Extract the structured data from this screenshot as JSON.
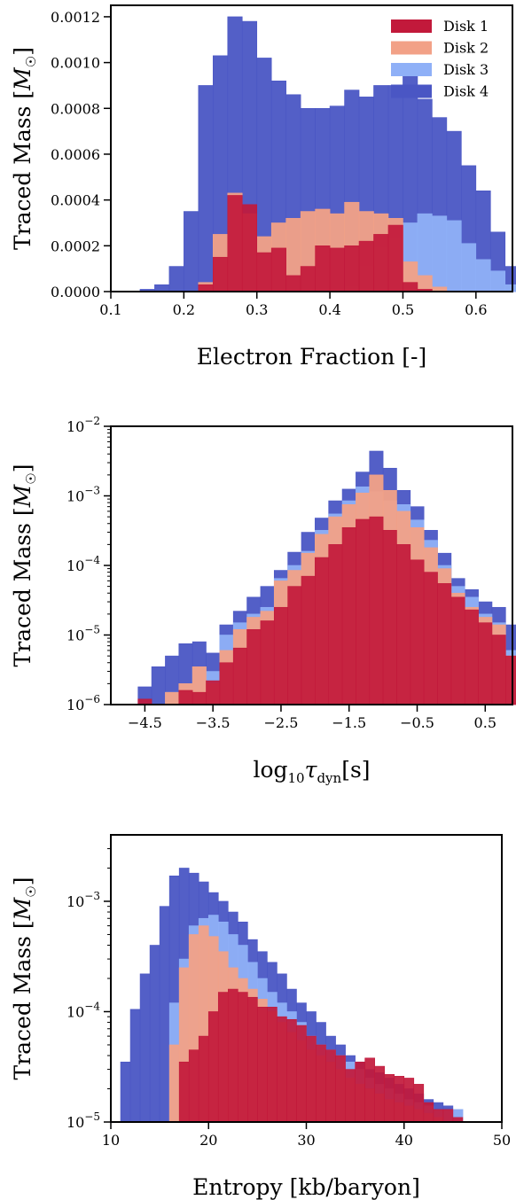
{
  "colors": {
    "Disk 4": "#4a56c4",
    "Disk 3": "#8fb0f7",
    "Disk 2": "#f2a187",
    "Disk 1": "#c2193b"
  },
  "chart_data": [
    {
      "type": "bar",
      "panel": "electron_fraction",
      "xlabel": "Electron Fraction [-]",
      "ylabel": "Traced Mass [M_☉]",
      "ylabel_parts": {
        "text": "Traced Mass [",
        "symbol": "M",
        "sub": "☉",
        "close": "]"
      },
      "xlim": [
        0.1,
        0.65
      ],
      "ylim": [
        0,
        0.00125
      ],
      "yscale": "linear",
      "xticks": [
        0.1,
        0.2,
        0.3,
        0.4,
        0.5,
        0.6
      ],
      "xticklabels": [
        "0.1",
        "0.2",
        "0.3",
        "0.4",
        "0.5",
        "0.6"
      ],
      "yticks": [
        0,
        0.0002,
        0.0004,
        0.0006,
        0.0008,
        0.001,
        0.0012
      ],
      "yticklabels": [
        "0.0000",
        "0.0002",
        "0.0004",
        "0.0006",
        "0.0008",
        "0.0010",
        "0.0012"
      ],
      "legend": [
        "Disk 1",
        "Disk 2",
        "Disk 3",
        "Disk 4"
      ],
      "legend_position": "top-right",
      "bin_start": 0.14,
      "bin_width": 0.02,
      "series": [
        {
          "name": "Disk 4",
          "values": [
            1e-05,
            3e-05,
            0.00011,
            0.00035,
            0.0009,
            0.00103,
            0.0012,
            0.00118,
            0.00102,
            0.00092,
            0.00086,
            0.0008,
            0.0008,
            0.00081,
            0.00088,
            0.00085,
            0.0009,
            0.0009,
            0.00097,
            0.00084,
            0.00076,
            0.0007,
            0.00055,
            0.00044,
            0.00026,
            0.00011,
            5e-05,
            5e-05,
            1e-05
          ]
        },
        {
          "name": "Disk 3",
          "values": [
            0,
            0,
            0,
            0,
            0,
            0,
            0,
            0,
            0,
            0,
            0,
            0,
            0,
            0,
            2e-05,
            0.00011,
            0.00019,
            0.00023,
            0.0003,
            0.00034,
            0.00033,
            0.00031,
            0.00021,
            0.00014,
            9e-05,
            3e-05,
            0,
            0,
            0
          ]
        },
        {
          "name": "Disk 2",
          "values": [
            0,
            0,
            0,
            0,
            4e-05,
            0.00025,
            0.00043,
            0.00034,
            0.00024,
            0.0003,
            0.00032,
            0.00035,
            0.00036,
            0.00034,
            0.00039,
            0.00035,
            0.00034,
            0.00032,
            0.00013,
            7e-05,
            2e-05,
            0,
            0,
            0,
            0,
            0,
            0,
            0,
            0
          ]
        },
        {
          "name": "Disk 1",
          "values": [
            0,
            0,
            0,
            0,
            3e-05,
            0.00015,
            0.00042,
            0.00038,
            0.00017,
            0.00019,
            7e-05,
            0.00011,
            0.0002,
            0.00019,
            0.0002,
            0.00022,
            0.00025,
            0.00029,
            4e-05,
            1e-05,
            0,
            0,
            0,
            0,
            0,
            0,
            0,
            0,
            0
          ]
        }
      ]
    },
    {
      "type": "bar",
      "panel": "dynamical_timescale",
      "xlabel": "log10τdyn[s]",
      "xlabel_parts": {
        "a": "log",
        "b": "10",
        "c": "τ",
        "d": "dyn",
        "e": "[s]"
      },
      "ylabel": "Traced Mass [M_☉]",
      "ylabel_parts": {
        "text": "Traced Mass [",
        "symbol": "M",
        "sub": "☉",
        "close": "]"
      },
      "xlim": [
        -5.0,
        0.9
      ],
      "ylim": [
        1e-06,
        0.01
      ],
      "yscale": "log",
      "xticks": [
        -4.5,
        -3.5,
        -2.5,
        -1.5,
        -0.5,
        0.5
      ],
      "xticklabels": [
        "−4.5",
        "−3.5",
        "−2.5",
        "−1.5",
        "−0.5",
        "0.5"
      ],
      "yticks": [
        1e-06,
        1e-05,
        0.0001,
        0.001,
        0.01
      ],
      "yticklabels": [
        [
          "10",
          "−6"
        ],
        [
          "10",
          "−5"
        ],
        [
          "10",
          "−4"
        ],
        [
          "10",
          "−3"
        ],
        [
          "10",
          "−2"
        ]
      ],
      "bin_start": -4.6,
      "bin_width": 0.2,
      "series": [
        {
          "name": "Disk 4",
          "values": [
            1.8e-06,
            3.5e-06,
            5e-06,
            7.5e-06,
            8e-06,
            5.5e-06,
            1.4e-05,
            2.2e-05,
            3.5e-05,
            5e-05,
            8.5e-05,
            0.000155,
            0.0003,
            0.00048,
            0.00085,
            0.00125,
            0.0022,
            0.0044,
            0.0025,
            0.0012,
            0.0007,
            0.00032,
            0.00015,
            6.5e-05,
            4.5e-05,
            3e-05,
            2.5e-05,
            1.4e-05,
            0
          ]
        },
        {
          "name": "Disk 3",
          "values": [
            0,
            0,
            1.5e-06,
            2e-06,
            3.5e-06,
            3e-06,
            1e-05,
            1.5e-05,
            2e-05,
            2.5e-05,
            6.5e-05,
            0.0001,
            0.00016,
            0.00032,
            0.00055,
            0.00085,
            0.00135,
            0.00115,
            0.00085,
            0.00075,
            0.00045,
            0.00023,
            0.0001,
            5e-05,
            3.5e-05,
            2e-05,
            1.5e-05,
            6e-06,
            0
          ]
        },
        {
          "name": "Disk 2",
          "values": [
            0,
            0,
            1.5e-06,
            2e-06,
            3.5e-06,
            2e-06,
            6e-06,
            1.2e-05,
            1.8e-05,
            2.2e-05,
            6e-05,
            8.5e-05,
            0.00015,
            0.00028,
            0.0005,
            0.00075,
            0.0011,
            0.002,
            0.0012,
            0.0006,
            0.00035,
            0.00018,
            9e-05,
            4e-05,
            2.5e-05,
            1.8e-05,
            1.4e-05,
            5e-06,
            0
          ]
        },
        {
          "name": "Disk 1",
          "values": [
            1.2e-06,
            1e-06,
            1e-06,
            1.6e-06,
            1.5e-06,
            2.2e-06,
            4e-06,
            6.5e-06,
            1.2e-05,
            1.6e-05,
            2.5e-05,
            5e-05,
            7e-05,
            0.00013,
            0.0002,
            0.00035,
            0.00046,
            0.0005,
            0.00032,
            0.0002,
            0.00012,
            8e-05,
            5.5e-05,
            3.5e-05,
            2.3e-05,
            1.5e-05,
            1e-05,
            5e-06,
            1.6e-06
          ]
        }
      ]
    },
    {
      "type": "bar",
      "panel": "entropy",
      "xlabel": "Entropy [kb/baryon]",
      "ylabel": "Traced Mass [M_☉]",
      "ylabel_parts": {
        "text": "Traced Mass [",
        "symbol": "M",
        "sub": "☉",
        "close": "]"
      },
      "xlim": [
        10,
        50
      ],
      "ylim": [
        1e-05,
        0.004
      ],
      "yscale": "log",
      "xticks": [
        10,
        20,
        30,
        40,
        50
      ],
      "xticklabels": [
        "10",
        "20",
        "30",
        "40",
        "50"
      ],
      "yticks": [
        1e-05,
        0.0001,
        0.001
      ],
      "yticklabels": [
        [
          "10",
          "−5"
        ],
        [
          "10",
          "−4"
        ],
        [
          "10",
          "−3"
        ]
      ],
      "bin_start": 11,
      "bin_width": 1,
      "series": [
        {
          "name": "Disk 4",
          "values": [
            3.5e-05,
            0.000105,
            0.00022,
            0.0004,
            0.0009,
            0.0017,
            0.002,
            0.0018,
            0.0015,
            0.0012,
            0.001,
            0.0008,
            0.00065,
            0.00045,
            0.00035,
            0.00028,
            0.00022,
            0.00016,
            0.00012,
            0.0001,
            8e-05,
            6e-05,
            5e-05,
            4e-05,
            3.5e-05,
            3e-05,
            2.8e-05,
            2.5e-05,
            2.2e-05,
            2e-05,
            1.8e-05,
            1.6e-05,
            1.5e-05,
            1.4e-05,
            1.3e-05
          ]
        },
        {
          "name": "Disk 3",
          "values": [
            0,
            0,
            0,
            0,
            1e-05,
            0.00012,
            0.0003,
            0.0006,
            0.0007,
            0.00075,
            0.00065,
            0.0005,
            0.0004,
            0.00028,
            0.0002,
            0.00015,
            0.00012,
            0.0001,
            8e-05,
            6e-05,
            5e-05,
            4.5e-05,
            4e-05,
            3.5e-05,
            3e-05,
            2.5e-05,
            2.2e-05,
            2e-05,
            1.8e-05,
            1.6e-05,
            1.5e-05,
            1.4e-05,
            1.3e-05,
            1.3e-05,
            1.3e-05
          ]
        },
        {
          "name": "Disk 2",
          "values": [
            0,
            0,
            0,
            0,
            1e-05,
            5e-05,
            0.00025,
            0.0005,
            0.0006,
            0.00048,
            0.00035,
            0.00025,
            0.0002,
            0.00016,
            0.00013,
            0.0001,
            8e-05,
            6.5e-05,
            5.5e-05,
            4.5e-05,
            4e-05,
            3.5e-05,
            3e-05,
            2.5e-05,
            2.2e-05,
            2e-05,
            1.8e-05,
            1.6e-05,
            1.5e-05,
            1.4e-05,
            1.3e-05,
            1.2e-05,
            1.1e-05,
            1e-05,
            0
          ]
        },
        {
          "name": "Disk 1",
          "values": [
            0,
            0,
            0,
            0,
            0,
            0,
            3.5e-05,
            4.5e-05,
            6e-05,
            0.0001,
            0.00015,
            0.00016,
            0.00015,
            0.000135,
            0.00011,
            0.00011,
            9e-05,
            8.5e-05,
            7.5e-05,
            6e-05,
            5e-05,
            4.5e-05,
            4e-05,
            3e-05,
            3.5e-05,
            3.8e-05,
            3.2e-05,
            2.7e-05,
            2.6e-05,
            2.5e-05,
            2.2e-05,
            1.5e-05,
            1.3e-05,
            1.3e-05,
            1.1e-05
          ]
        }
      ]
    }
  ]
}
